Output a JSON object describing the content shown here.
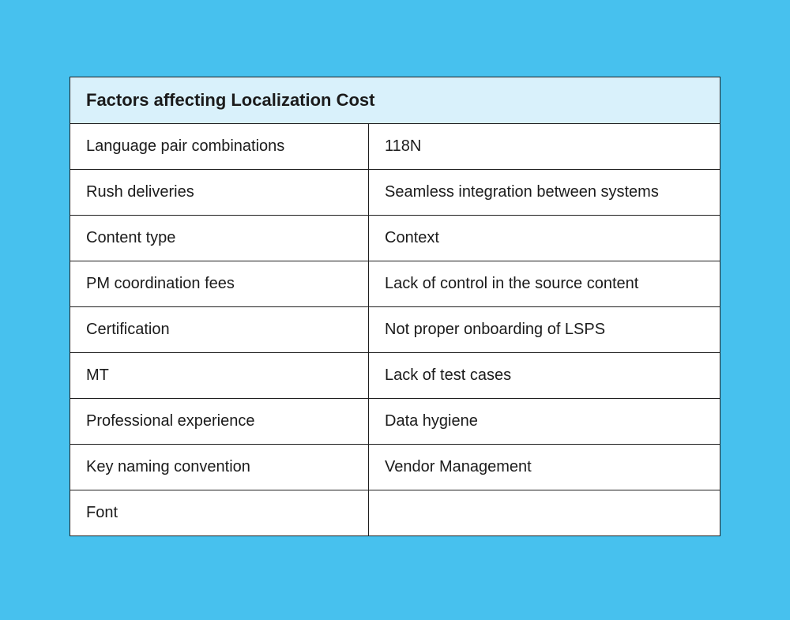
{
  "table": {
    "title": "Factors affecting Localization Cost",
    "rows": [
      [
        "Language pair combinations",
        "118N"
      ],
      [
        "Rush deliveries",
        "Seamless integration between systems"
      ],
      [
        "Content type",
        "Context"
      ],
      [
        "PM coordination fees",
        "Lack of control in the source content"
      ],
      [
        "Certification",
        "Not proper onboarding of LSPS"
      ],
      [
        "MT",
        "Lack of test cases"
      ],
      [
        "Professional experience",
        "Data hygiene"
      ],
      [
        "Key naming convention",
        "Vendor Management"
      ],
      [
        "Font",
        ""
      ]
    ]
  },
  "colors": {
    "background": "#47c1ee",
    "header": "#d9f1fb",
    "border": "#1f1f1f"
  }
}
